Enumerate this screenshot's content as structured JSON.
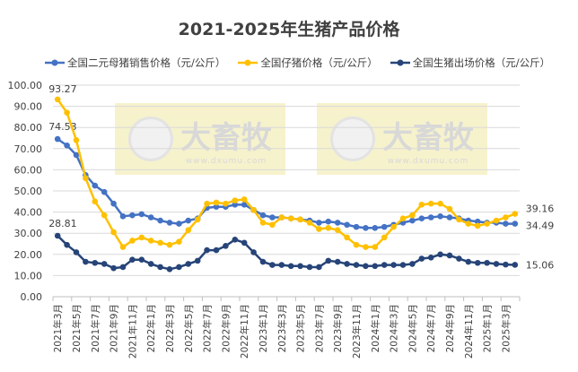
{
  "chart_data": {
    "type": "line",
    "title": "2021-2025年生猪产品价格",
    "ylim": [
      0,
      100
    ],
    "yticks": [
      "0.00",
      "10.00",
      "20.00",
      "30.00",
      "40.00",
      "50.00",
      "60.00",
      "70.00",
      "80.00",
      "90.00",
      "100.00"
    ],
    "grid": true,
    "legend_position": "top",
    "categories": [
      "2021年3月",
      "2021年4月",
      "2021年5月",
      "2021年6月",
      "2021年7月",
      "2021年8月",
      "2021年9月",
      "2021年10月",
      "2021年11月",
      "2021年12月",
      "2022年1月",
      "2022年2月",
      "2022年3月",
      "2022年4月",
      "2022年5月",
      "2022年6月",
      "2022年7月",
      "2022年8月",
      "2022年9月",
      "2022年10月",
      "2022年11月",
      "2022年12月",
      "2023年1月",
      "2023年2月",
      "2023年3月",
      "2023年4月",
      "2023年5月",
      "2023年6月",
      "2023年7月",
      "2023年8月",
      "2023年9月",
      "2023年10月",
      "2023年11月",
      "2023年12月",
      "2024年1月",
      "2024年2月",
      "2024年3月",
      "2024年4月",
      "2024年5月",
      "2024年6月",
      "2024年7月",
      "2024年8月",
      "2024年9月",
      "2024年10月",
      "2024年11月",
      "2024年12月",
      "2025年1月",
      "2025年2月",
      "2025年3月",
      "2025年4月"
    ],
    "series": [
      {
        "name": "全国二元母猪销售价格（元/公斤）",
        "color": "#4472C4",
        "first_label": "74.53",
        "last_label": "34.49",
        "values": [
          74.53,
          71.5,
          67,
          57.5,
          52.5,
          49.5,
          44,
          38,
          38.5,
          39,
          37.5,
          36,
          35,
          34.5,
          36,
          37,
          42,
          42.5,
          42.5,
          43.5,
          43.5,
          41,
          38.5,
          37.5,
          37.5,
          37,
          36.5,
          36,
          35,
          35.5,
          35,
          34,
          33,
          32.5,
          32.5,
          33,
          34,
          35,
          36,
          37,
          37.5,
          38,
          37.5,
          37,
          36,
          35.5,
          35,
          35,
          34.5,
          34.49
        ]
      },
      {
        "name": "全国仔猪价格（元/公斤）",
        "color": "#FFC000",
        "first_label": "93.27",
        "last_label": "39.16",
        "values": [
          93.27,
          87,
          74,
          56,
          45,
          38.5,
          30.5,
          23.5,
          26.5,
          28,
          26.5,
          25.5,
          24.5,
          26,
          31.5,
          36.5,
          44,
          44.5,
          44,
          45.5,
          46,
          41,
          35,
          34,
          37.5,
          37,
          36.5,
          35,
          32,
          32.5,
          31.5,
          28,
          24.5,
          23.5,
          23.5,
          28,
          33,
          37,
          38.5,
          43.5,
          44,
          44,
          41.5,
          36.5,
          34.5,
          33.5,
          34.5,
          36,
          37.5,
          39.16
        ]
      },
      {
        "name": "全国生猪出场价格（元/公斤）",
        "color": "#264478",
        "first_label": "28.81",
        "last_label": "15.06",
        "values": [
          28.81,
          24.5,
          21,
          16.5,
          16,
          15.5,
          13.5,
          14,
          17.5,
          17.5,
          15.5,
          14,
          13,
          14,
          15.5,
          17,
          22,
          22,
          24,
          27,
          25.5,
          21,
          16.5,
          15,
          15,
          14.5,
          14.5,
          14,
          14,
          17,
          16.5,
          15.5,
          15,
          14.5,
          14.5,
          15,
          15,
          15,
          15.5,
          18,
          18.5,
          20,
          19.5,
          18,
          16.5,
          16,
          16,
          15.5,
          15.2,
          15.06
        ]
      }
    ]
  },
  "watermark": {
    "brand": "大畜牧",
    "url": "www.dxumu.com"
  }
}
